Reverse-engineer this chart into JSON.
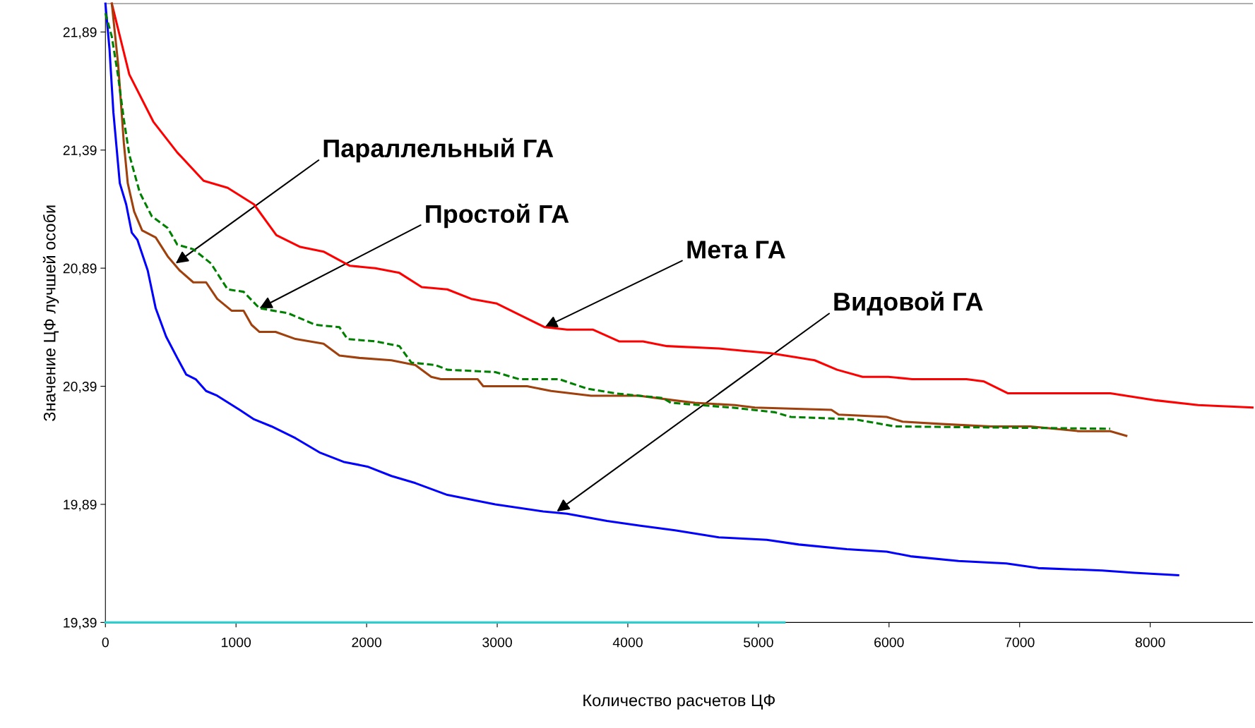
{
  "chart_data": {
    "type": "line",
    "xlabel": "Количество расчетов ЦФ",
    "ylabel": "Значение ЦФ лучшей особи",
    "xlim": [
      0,
      8783
    ],
    "ylim": [
      19.39,
      22.01
    ],
    "xticks": [
      0,
      1000,
      2000,
      3000,
      4000,
      5000,
      6000,
      7000,
      8000
    ],
    "yticks": [
      {
        "value": 19.39,
        "label": "19,39"
      },
      {
        "value": 19.89,
        "label": "19,89"
      },
      {
        "value": 20.39,
        "label": "20,39"
      },
      {
        "value": 20.89,
        "label": "20,89"
      },
      {
        "value": 21.39,
        "label": "21,39"
      },
      {
        "value": 21.89,
        "label": "21,89"
      }
    ],
    "grid": false,
    "legend": false,
    "marker": "none",
    "series": [
      {
        "color": "#ff0000",
        "line_style": "solid",
        "x": [
          49,
          183,
          367,
          550,
          752,
          936,
          1138,
          1309,
          1492,
          1670,
          1872,
          2067,
          2251,
          2422,
          2618,
          2801,
          2997,
          3180,
          3364,
          3535,
          3731,
          3933,
          4116,
          4300,
          4697,
          4881,
          5095,
          5431,
          5602,
          5798,
          5994,
          6177,
          6593,
          6728,
          6911,
          7694,
          8049,
          8367,
          8783
        ],
        "values": [
          22.01,
          21.71,
          21.51,
          21.38,
          21.26,
          21.23,
          21.16,
          21.03,
          20.98,
          20.96,
          20.9,
          20.89,
          20.87,
          20.81,
          20.8,
          20.76,
          20.74,
          20.69,
          20.64,
          20.63,
          20.63,
          20.58,
          20.58,
          20.56,
          20.55,
          20.54,
          20.53,
          20.5,
          20.46,
          20.43,
          20.43,
          20.42,
          20.42,
          20.41,
          20.36,
          20.36,
          20.33,
          20.31,
          20.3
        ]
      },
      {
        "color": "#0000ff",
        "line_style": "solid",
        "x": [
          0,
          31,
          61,
          110,
          159,
          202,
          245,
          324,
          385,
          465,
          550,
          618,
          691,
          771,
          856,
          942,
          1028,
          1138,
          1272,
          1456,
          1639,
          1823,
          2006,
          2190,
          2373,
          2618,
          2801,
          2985,
          3352,
          3535,
          3841,
          4086,
          4361,
          4697,
          5064,
          5309,
          5676,
          5982,
          6165,
          6532,
          6899,
          7144,
          7633,
          7878,
          8214
        ],
        "values": [
          22.01,
          21.82,
          21.55,
          21.25,
          21.16,
          21.04,
          21.01,
          20.88,
          20.72,
          20.6,
          20.51,
          20.44,
          20.42,
          20.37,
          20.35,
          20.32,
          20.29,
          20.25,
          20.22,
          20.17,
          20.11,
          20.07,
          20.05,
          20.01,
          19.98,
          19.93,
          19.91,
          19.89,
          19.86,
          19.85,
          19.82,
          19.8,
          19.78,
          19.75,
          19.74,
          19.72,
          19.7,
          19.69,
          19.67,
          19.65,
          19.64,
          19.62,
          19.61,
          19.6,
          19.59
        ]
      },
      {
        "color": "#a0410d",
        "line_style": "solid",
        "x": [
          49,
          98,
          141,
          171,
          220,
          281,
          385,
          477,
          569,
          673,
          771,
          856,
          966,
          1058,
          1119,
          1180,
          1303,
          1456,
          1670,
          1792,
          1945,
          2190,
          2373,
          2495,
          2569,
          2850,
          2893,
          3229,
          3413,
          3719,
          4086,
          4361,
          4514,
          4820,
          4973,
          5559,
          5614,
          5982,
          6104,
          6410,
          6777,
          7083,
          7450,
          7694,
          7817
        ],
        "values": [
          22.01,
          21.75,
          21.42,
          21.25,
          21.13,
          21.05,
          21.02,
          20.94,
          20.88,
          20.83,
          20.83,
          20.76,
          20.71,
          20.71,
          20.65,
          20.62,
          20.62,
          20.59,
          20.57,
          20.52,
          20.51,
          20.5,
          20.48,
          20.43,
          20.42,
          20.42,
          20.39,
          20.39,
          20.37,
          20.35,
          20.35,
          20.33,
          20.32,
          20.31,
          20.3,
          20.29,
          20.27,
          20.26,
          20.24,
          20.23,
          20.22,
          20.22,
          20.2,
          20.2,
          20.18
        ]
      },
      {
        "color": "#008000",
        "line_style": "dashed",
        "x": [
          0,
          49,
          98,
          141,
          183,
          263,
          355,
          477,
          550,
          673,
          808,
          936,
          1058,
          1180,
          1395,
          1609,
          1792,
          1853,
          2067,
          2251,
          2343,
          2526,
          2618,
          2985,
          3168,
          3474,
          3688,
          3902,
          4269,
          4330,
          4789,
          5125,
          5248,
          5737,
          6043,
          7694
        ],
        "values": [
          21.97,
          21.87,
          21.7,
          21.52,
          21.37,
          21.21,
          21.11,
          21.06,
          20.99,
          20.97,
          20.91,
          20.8,
          20.79,
          20.72,
          20.7,
          20.65,
          20.64,
          20.59,
          20.58,
          20.56,
          20.49,
          20.48,
          20.46,
          20.45,
          20.42,
          20.42,
          20.38,
          20.36,
          20.34,
          20.32,
          20.3,
          20.28,
          20.26,
          20.25,
          20.22,
          20.21
        ]
      },
      {
        "color": "#33cccc",
        "line_style": "solid",
        "x": [
          0,
          5200
        ],
        "values": [
          19.39,
          19.39
        ]
      }
    ],
    "annotations": [
      {
        "text": "Параллельный ГА",
        "x": 538,
        "y": 20.91
      },
      {
        "text": "Простой ГА",
        "x": 1180,
        "y": 20.72
      },
      {
        "text": "Мета ГА",
        "x": 3364,
        "y": 20.64
      },
      {
        "text": "Видовой ГА",
        "x": 3456,
        "y": 19.86
      }
    ]
  }
}
